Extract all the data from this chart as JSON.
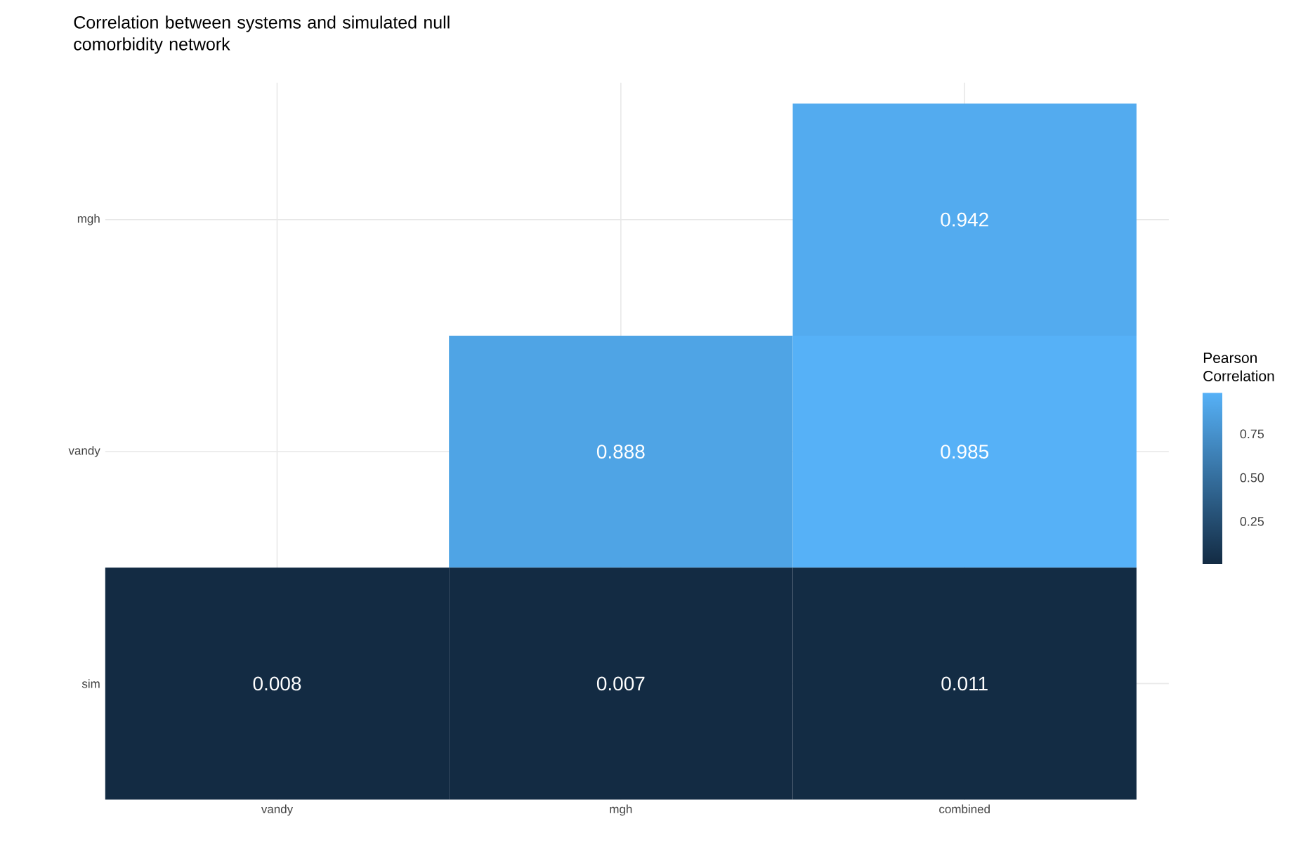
{
  "chart_data": {
    "type": "heatmap",
    "title": "Correlation between systems and simulated null comorbidity network",
    "categories": [
      "vandy",
      "mgh",
      "combined"
    ],
    "y_categories": [
      "mgh",
      "vandy",
      "sim"
    ],
    "cells": [
      [
        null,
        null,
        0.942
      ],
      [
        null,
        0.888,
        0.985
      ],
      [
        0.008,
        0.007,
        0.011
      ]
    ],
    "data_labels": true,
    "clabel": "Pearson Correlation",
    "clim": [
      0.007,
      0.985
    ],
    "cticks": [
      0.25,
      {
        "value": 0.5,
        "label": "0.50"
      },
      0.75
    ],
    "grid": true
  }
}
